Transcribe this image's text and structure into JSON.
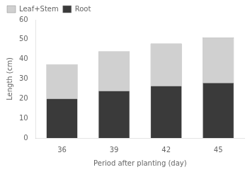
{
  "chart_data": {
    "type": "bar",
    "categories": [
      "36",
      "39",
      "42",
      "45"
    ],
    "series": [
      {
        "name": "Root",
        "color": "#3a3a3a",
        "values": [
          20.0,
          24.0,
          26.5,
          28.0
        ]
      },
      {
        "name": "Leaf+Stem",
        "color": "#d0d0d0",
        "values": [
          17.5,
          20.0,
          21.5,
          23.0
        ]
      }
    ],
    "stacked": true,
    "xlabel": "Period after planting (day)",
    "ylabel": "Length (cm)",
    "ylim": [
      0,
      60
    ],
    "yticks": [
      0,
      10,
      20,
      30,
      40,
      50,
      60
    ],
    "grid": false,
    "legend": "upper left"
  }
}
